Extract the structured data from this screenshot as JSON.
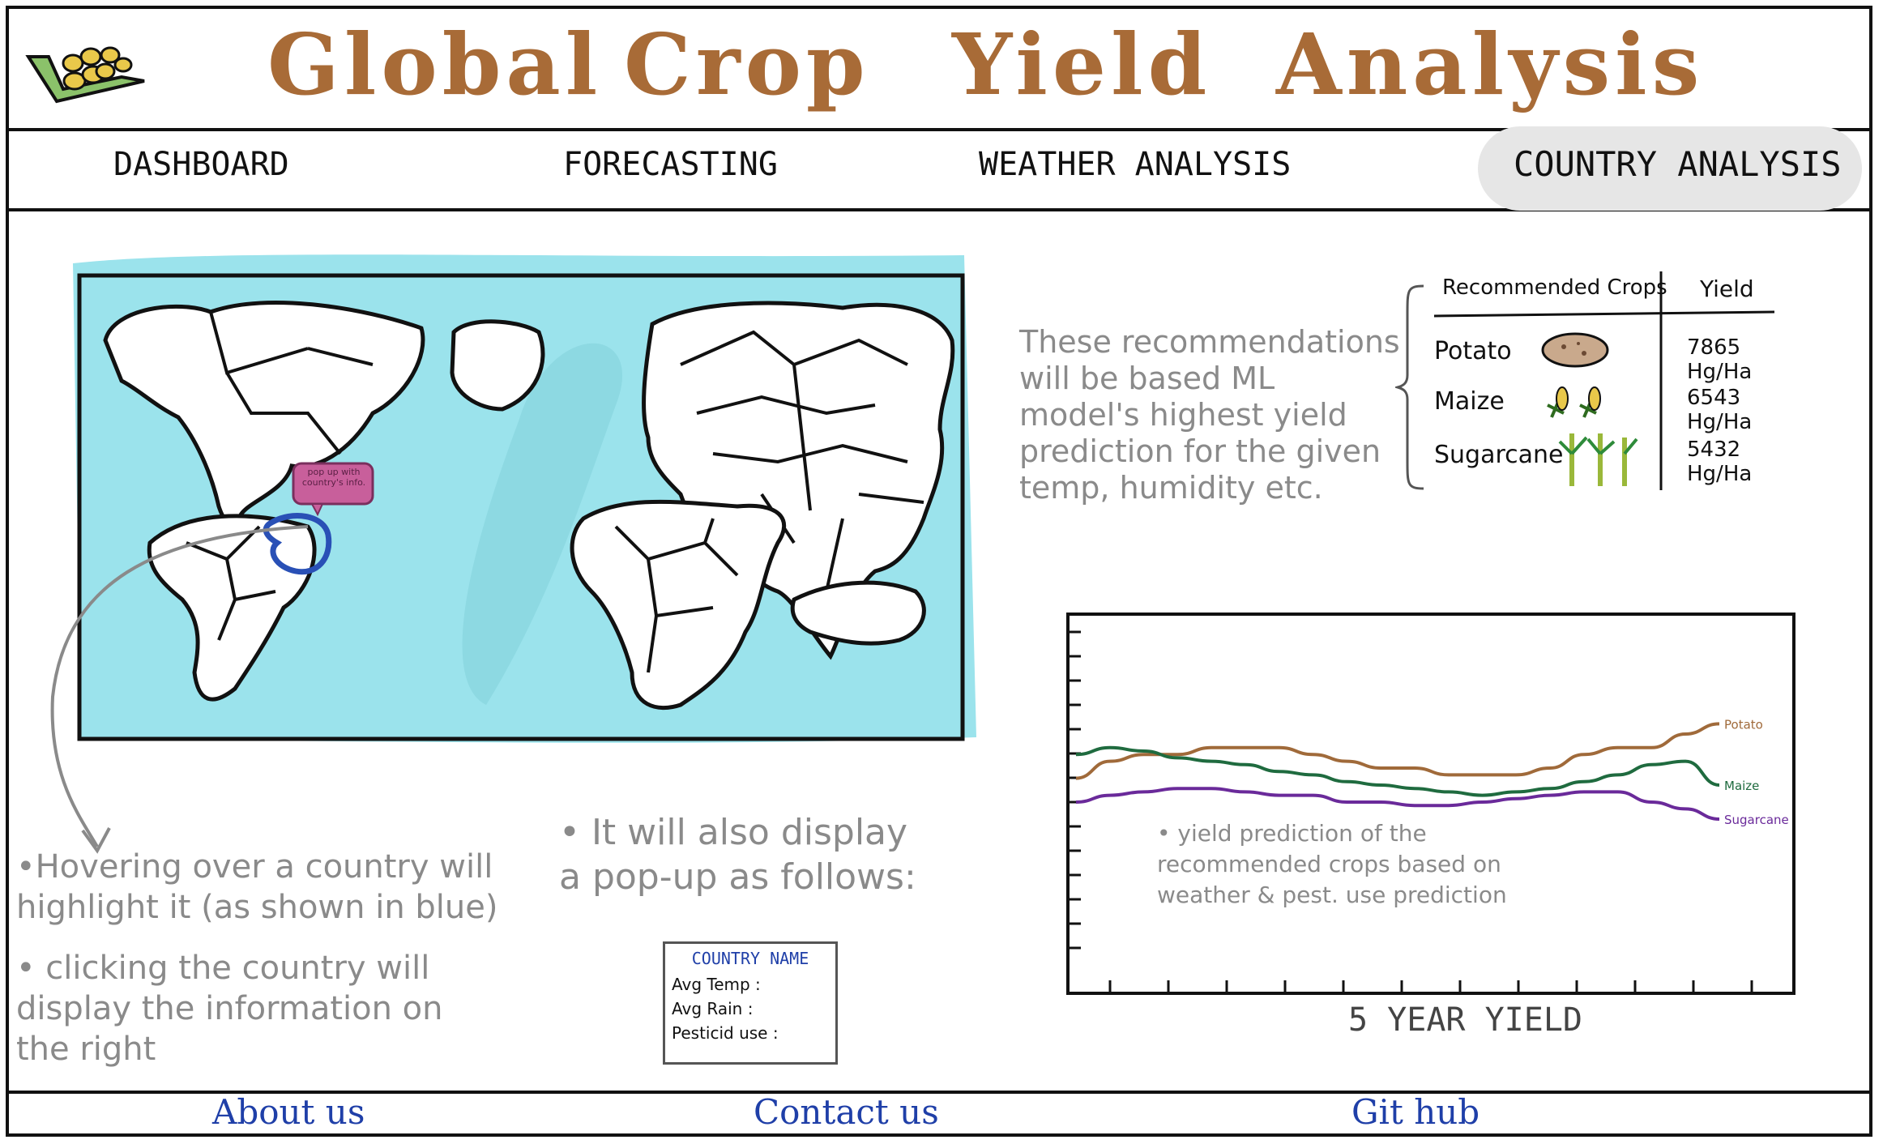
{
  "app": {
    "title_words": [
      "Global",
      "Crop",
      "Yield",
      "Analysis"
    ]
  },
  "nav": {
    "items": [
      {
        "label": "DASHBOARD"
      },
      {
        "label": "FORECASTING"
      },
      {
        "label": "WEATHER ANALYSIS"
      },
      {
        "label": "COUNTRY ANALYSIS",
        "active": true
      }
    ]
  },
  "map": {
    "popup_bubble": "pop up with country's info."
  },
  "notes": {
    "hover": "•Hovering over a country will highlight it (as shown in blue)",
    "click": "• clicking the country will display the information on the right",
    "popup_intro": "• It will also display a pop-up as follows:",
    "recommendation": "These recommendations will be based ML model's highest yield prediction for the given temp, humidity etc.",
    "chart_note": "• yield prediction of the recommended crops based on weather & pest. use prediction"
  },
  "popup": {
    "title": "COUNTRY NAME",
    "rows": [
      "Avg Temp :",
      "Avg Rain :",
      "Pesticid use :"
    ]
  },
  "recommended": {
    "header_crop": "Recommended Crops",
    "header_yield": "Yield",
    "rows": [
      {
        "crop": "Potato",
        "icon": "potato-icon",
        "yield": "7865 Hg/Ha"
      },
      {
        "crop": "Maize",
        "icon": "maize-icon",
        "yield": "6543 Hg/Ha"
      },
      {
        "crop": "Sugarcane",
        "icon": "sugarcane-icon",
        "yield": "5432 Hg/Ha"
      }
    ]
  },
  "chart_data": {
    "type": "line",
    "title": "",
    "xlabel": "5 YEAR YIELD",
    "ylabel": "",
    "grid": false,
    "legend": "inline-right",
    "series": [
      {
        "name": "Potato",
        "color": "#a06a3a",
        "values": [
          0.57,
          0.62,
          0.64,
          0.64,
          0.66,
          0.66,
          0.66,
          0.64,
          0.62,
          0.6,
          0.6,
          0.58,
          0.58,
          0.58,
          0.6,
          0.64,
          0.66,
          0.66,
          0.7,
          0.73
        ]
      },
      {
        "name": "Maize",
        "color": "#1f6b3f",
        "values": [
          0.64,
          0.66,
          0.65,
          0.63,
          0.62,
          0.61,
          0.59,
          0.58,
          0.56,
          0.55,
          0.54,
          0.53,
          0.52,
          0.53,
          0.54,
          0.56,
          0.58,
          0.61,
          0.62,
          0.55
        ]
      },
      {
        "name": "Sugarcane",
        "color": "#6a2a9a",
        "values": [
          0.5,
          0.52,
          0.53,
          0.54,
          0.54,
          0.53,
          0.52,
          0.52,
          0.5,
          0.5,
          0.49,
          0.49,
          0.5,
          0.51,
          0.52,
          0.53,
          0.53,
          0.5,
          0.48,
          0.45
        ]
      }
    ]
  },
  "footer": {
    "links": [
      "About us",
      "Contact us",
      "Git hub"
    ]
  },
  "colors": {
    "title": "#a86b37",
    "ocean": "#9be3ec",
    "highlight": "#2950b6",
    "popup_bubble": "#c85f9b",
    "footer_link": "#1f3fa8",
    "note_text": "#8a8a8a"
  }
}
